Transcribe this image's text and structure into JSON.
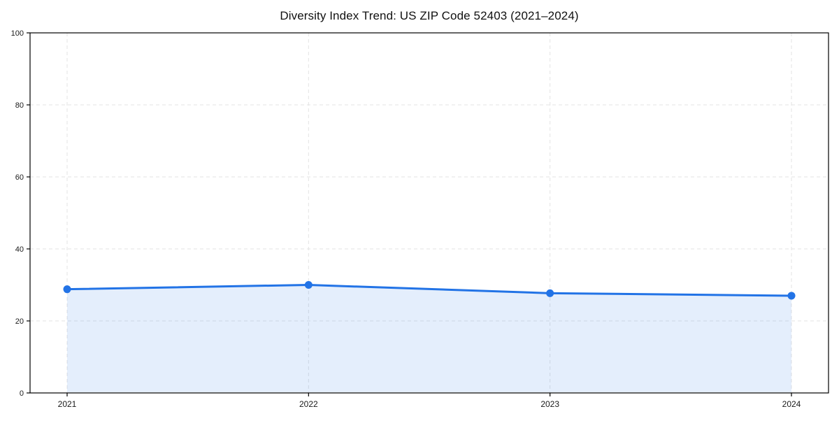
{
  "page": {
    "background": "#ffffff"
  },
  "chart_data": {
    "type": "line",
    "title": "Diversity Index Trend: US ZIP Code 52403 (2021–2024)",
    "xlabel": "",
    "ylabel": "",
    "categories": [
      "2021",
      "2022",
      "2023",
      "2024"
    ],
    "series": [
      {
        "name": "Diversity Index",
        "values": [
          28.8,
          30.0,
          27.7,
          27.0
        ]
      }
    ],
    "ylim": [
      0,
      100
    ],
    "yticks": [
      0,
      20,
      40,
      60,
      80,
      100
    ],
    "ytick_labels": [
      "0",
      "20",
      "40",
      "60",
      "80",
      "100"
    ],
    "grid": true,
    "grid_style": "dashed",
    "legend_position": "none",
    "colors": {
      "line": "#2273e6",
      "marker": "#2273e6",
      "fill": "#2273e6",
      "fill_opacity": 0.12,
      "grid": "#e3e3e3",
      "axis": "#000000",
      "tick_label": "#1a1a1a"
    }
  }
}
